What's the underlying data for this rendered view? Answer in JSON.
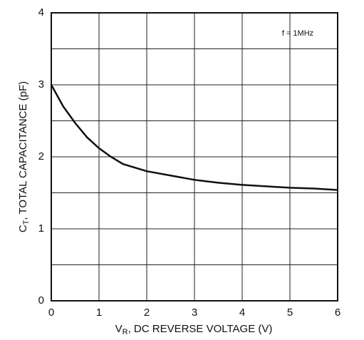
{
  "chart_data": {
    "type": "line",
    "ylabel": {
      "main": "C",
      "sub": "T",
      "rest": ", TOTAL CAPACITANCE (pF)"
    },
    "xlabel": {
      "main": "V",
      "sub": "R",
      "rest": ", DC REVERSE VOLTAGE (V)"
    },
    "annotation": "f = 1MHz",
    "x": [
      0,
      0.25,
      0.5,
      0.75,
      1,
      1.25,
      1.5,
      2,
      2.5,
      3,
      3.5,
      4,
      4.5,
      5,
      5.5,
      6
    ],
    "series": [
      {
        "color": "#111111",
        "values": [
          3.0,
          2.7,
          2.47,
          2.27,
          2.12,
          2.0,
          1.9,
          1.8,
          1.74,
          1.68,
          1.64,
          1.61,
          1.59,
          1.57,
          1.56,
          1.54
        ]
      }
    ],
    "xlim": [
      0,
      6
    ],
    "xticks": [
      0,
      1,
      2,
      3,
      4,
      5,
      6
    ],
    "ylim": [
      0,
      4
    ],
    "yticks": [
      0,
      1,
      2,
      3,
      4
    ],
    "yminor": [
      0.5,
      1.5,
      2.5,
      3.5
    ],
    "grid": true
  }
}
